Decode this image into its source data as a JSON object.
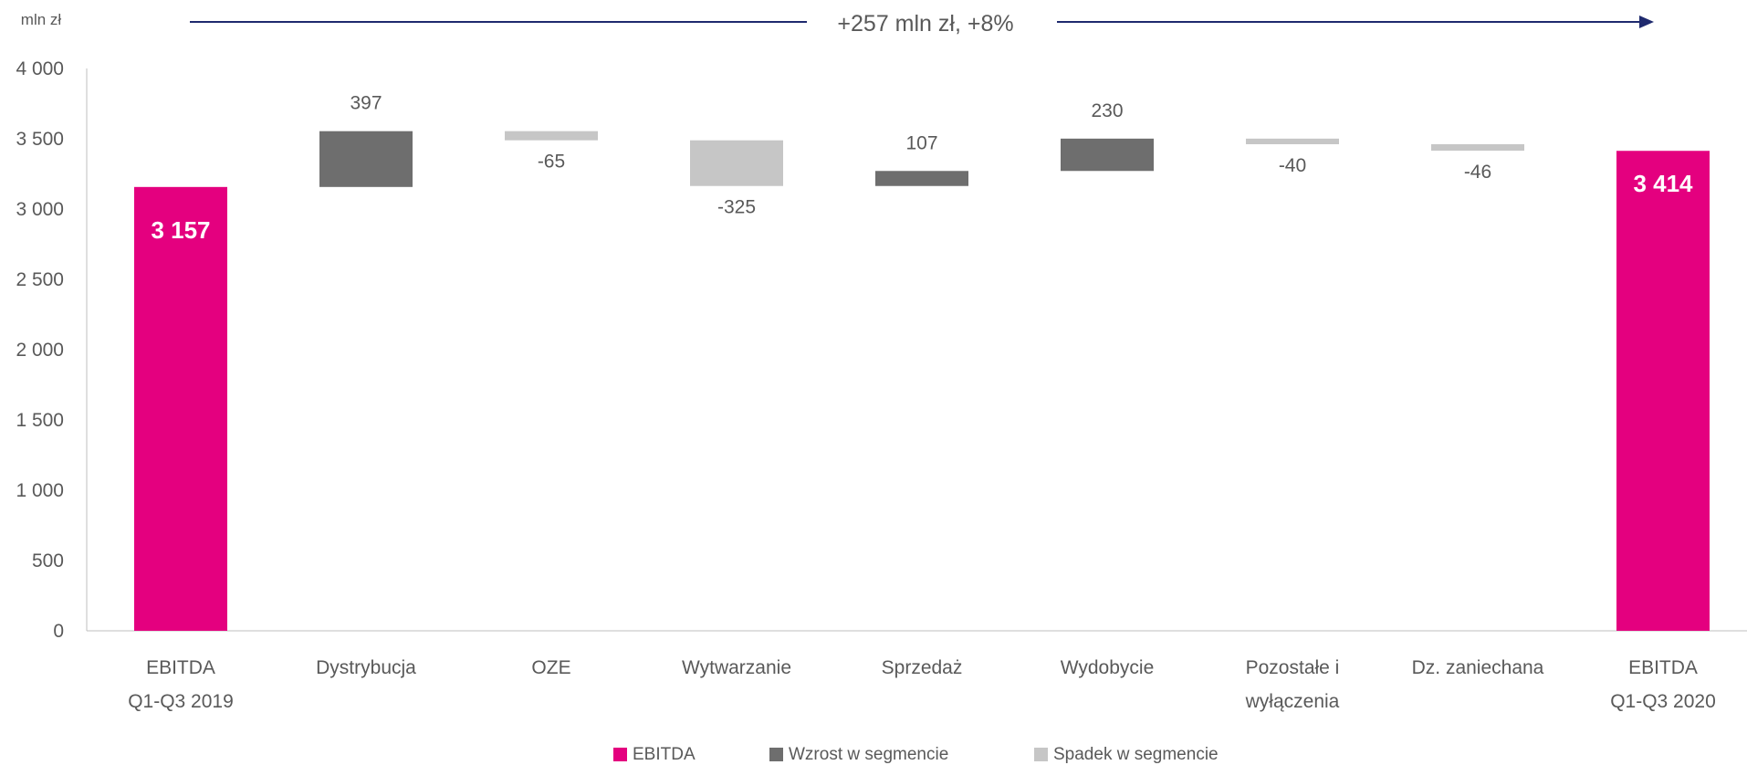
{
  "header": {
    "unit_label": "mln zł",
    "change_label": "+257 mln zł, +8%",
    "arrow_color": "#1f2a6e"
  },
  "colors": {
    "ebitda": "#e4007f",
    "increase": "#6e6e6e",
    "decrease": "#c6c6c6",
    "axis": "#bfbfbf",
    "text": "#595959"
  },
  "chart_data": {
    "type": "waterfall",
    "title": "",
    "xlabel": "",
    "ylabel": "mln zł",
    "ylim": [
      0,
      4000
    ],
    "yticks": [
      0,
      500,
      1000,
      1500,
      2000,
      2500,
      3000,
      3500,
      4000
    ],
    "ytick_labels": [
      "0",
      "500",
      "1 000",
      "1 500",
      "2 000",
      "2 500",
      "3 000",
      "3 500",
      "4 000"
    ],
    "categories": [
      [
        "EBITDA",
        "Q1-Q3 2019"
      ],
      [
        "Dystrybucja"
      ],
      [
        "OZE"
      ],
      [
        "Wytwarzanie"
      ],
      [
        "Sprzedaż"
      ],
      [
        "Wydobycie"
      ],
      [
        "Pozostałe i",
        "wyłączenia"
      ],
      [
        "Dz. zaniechana"
      ],
      [
        "EBITDA",
        "Q1-Q3 2020"
      ]
    ],
    "bars": [
      {
        "kind": "total",
        "value": 3157,
        "label": "3 157"
      },
      {
        "kind": "delta",
        "value": 397,
        "label": "397"
      },
      {
        "kind": "delta",
        "value": -65,
        "label": "-65"
      },
      {
        "kind": "delta",
        "value": -325,
        "label": "-325"
      },
      {
        "kind": "delta",
        "value": 107,
        "label": "107"
      },
      {
        "kind": "delta",
        "value": 230,
        "label": "230"
      },
      {
        "kind": "delta",
        "value": -40,
        "label": "-40"
      },
      {
        "kind": "delta",
        "value": -46,
        "label": "-46"
      },
      {
        "kind": "total",
        "value": 3414,
        "label": "3 414"
      }
    ],
    "legend": {
      "placement": "bottom",
      "items": [
        {
          "name": "EBITDA",
          "color": "#e4007f"
        },
        {
          "name": "Wzrost w segmencie",
          "color": "#6e6e6e"
        },
        {
          "name": "Spadek w segmencie",
          "color": "#c6c6c6"
        }
      ]
    },
    "grid": false
  }
}
